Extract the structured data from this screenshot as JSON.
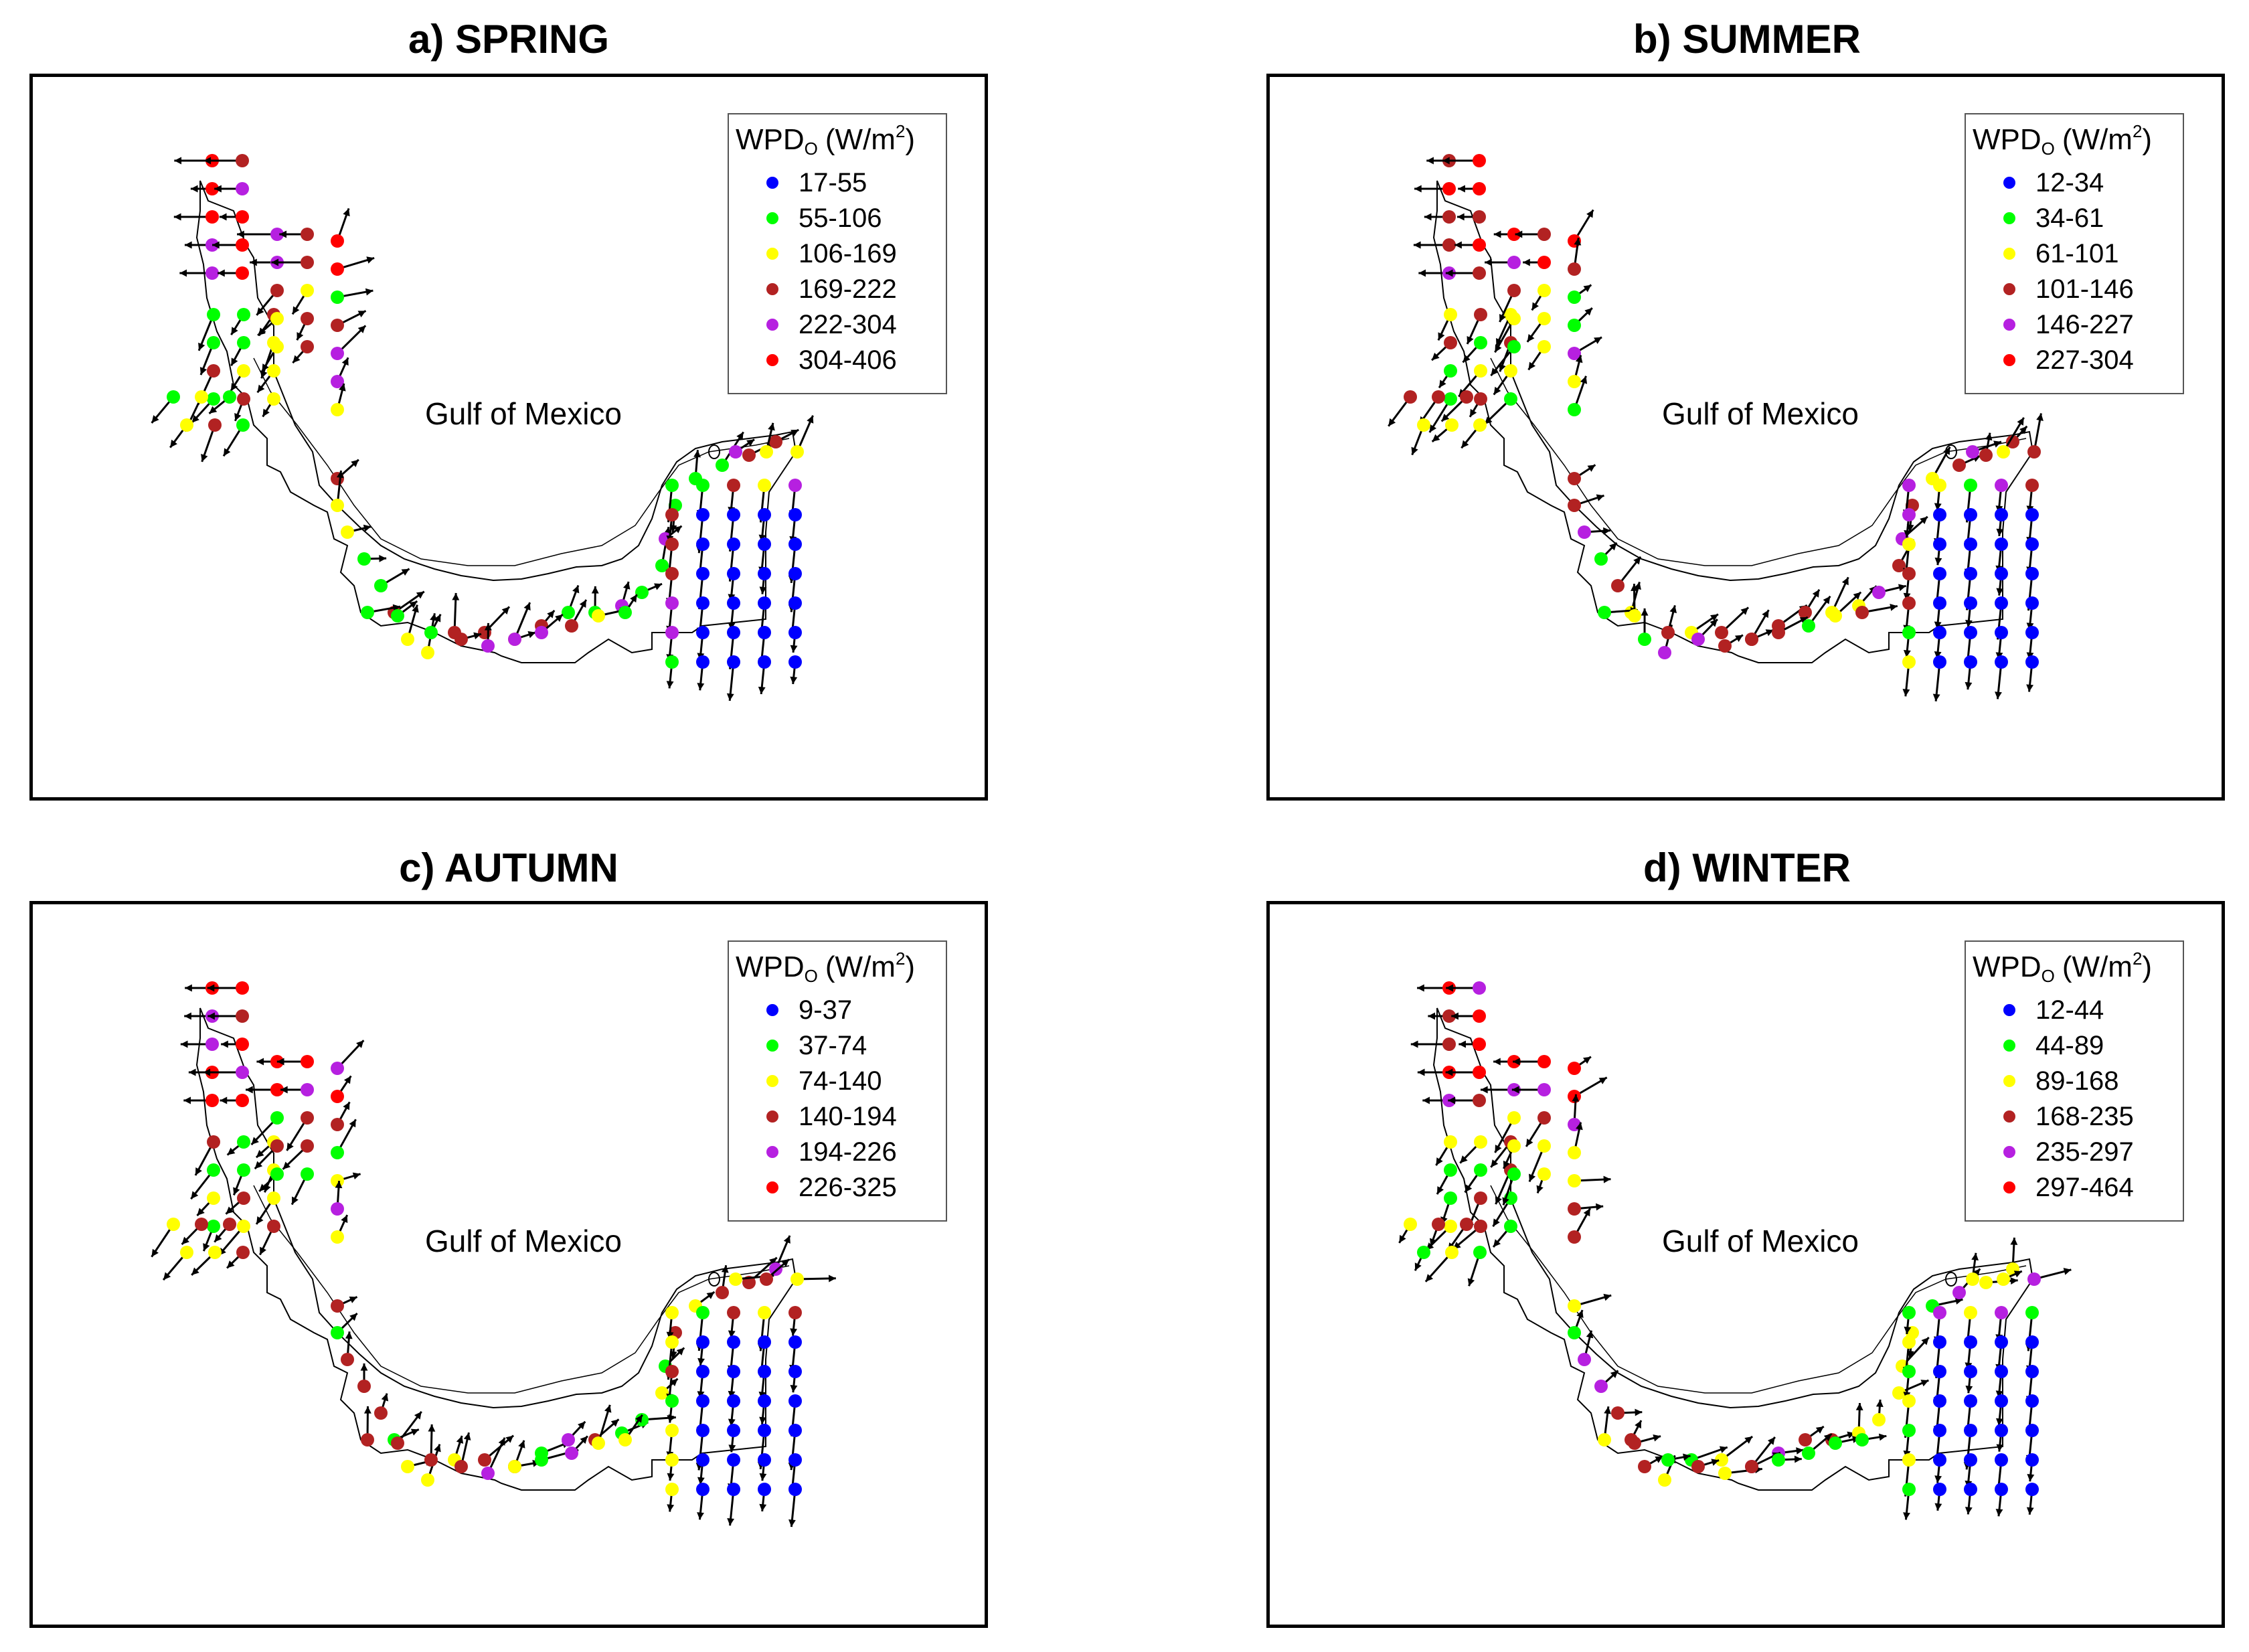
{
  "panels": [
    {
      "title": "a) SPRING",
      "legend": {
        "title": "WPD",
        "title_sub": "O",
        "unit": "(W/m",
        "unit_sup": "2",
        "unit_close": ")",
        "bins": [
          {
            "label": "17-55",
            "color": "#0000ff"
          },
          {
            "label": "55-106",
            "color": "#00ff00"
          },
          {
            "label": "106-169",
            "color": "#ffff00"
          },
          {
            "label": "169-222",
            "color": "#b22222"
          },
          {
            "label": "222-304",
            "color": "#b620e0"
          },
          {
            "label": "304-406",
            "color": "#ff0000"
          }
        ]
      },
      "gulf_label": "Gulf of Mexico"
    },
    {
      "title": "b) SUMMER",
      "legend": {
        "title": "WPD",
        "title_sub": "O",
        "unit": "(W/m",
        "unit_sup": "2",
        "unit_close": ")",
        "bins": [
          {
            "label": "12-34",
            "color": "#0000ff"
          },
          {
            "label": "34-61",
            "color": "#00ff00"
          },
          {
            "label": "61-101",
            "color": "#ffff00"
          },
          {
            "label": "101-146",
            "color": "#b22222"
          },
          {
            "label": "146-227",
            "color": "#b620e0"
          },
          {
            "label": "227-304",
            "color": "#ff0000"
          }
        ]
      },
      "gulf_label": "Gulf of Mexico"
    },
    {
      "title": "c) AUTUMN",
      "legend": {
        "title": "WPD",
        "title_sub": "O",
        "unit": "(W/m",
        "unit_sup": "2",
        "unit_close": ")",
        "bins": [
          {
            "label": "9-37",
            "color": "#0000ff"
          },
          {
            "label": "37-74",
            "color": "#00ff00"
          },
          {
            "label": "74-140",
            "color": "#ffff00"
          },
          {
            "label": "140-194",
            "color": "#b22222"
          },
          {
            "label": "194-226",
            "color": "#b620e0"
          },
          {
            "label": "226-325",
            "color": "#ff0000"
          }
        ]
      },
      "gulf_label": "Gulf of Mexico"
    },
    {
      "title": "d) WINTER",
      "legend": {
        "title": "WPD",
        "title_sub": "O",
        "unit": "(W/m",
        "unit_sup": "2",
        "unit_close": ")",
        "bins": [
          {
            "label": "12-44",
            "color": "#0000ff"
          },
          {
            "label": "44-89",
            "color": "#00ff00"
          },
          {
            "label": "89-168",
            "color": "#ffff00"
          },
          {
            "label": "168-235",
            "color": "#b22222"
          },
          {
            "label": "235-297",
            "color": "#b620e0"
          },
          {
            "label": "297-464",
            "color": "#ff0000"
          }
        ]
      },
      "gulf_label": "Gulf of Mexico"
    }
  ],
  "vector_color": "#000000",
  "coast_color": "#000000"
}
